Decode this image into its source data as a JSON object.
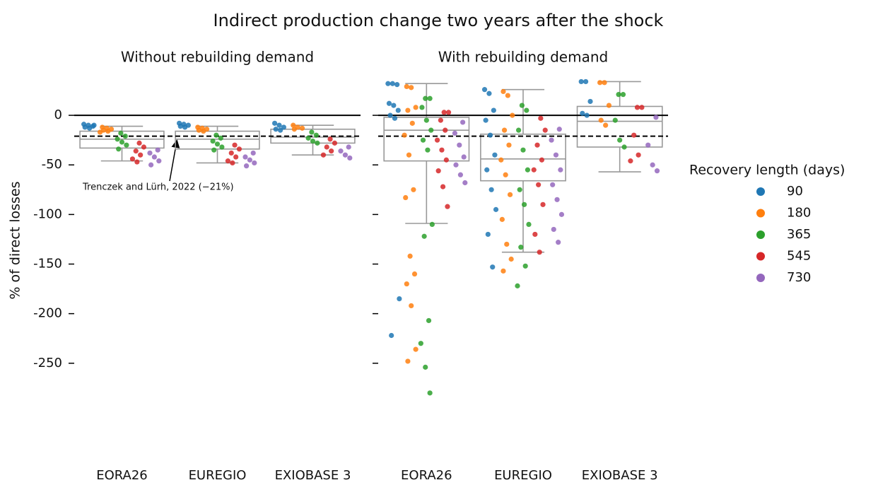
{
  "figure": {
    "title": "Indirect production change two years after the shock",
    "y_label": "% of direct losses",
    "legend_title": "Recovery length (days)",
    "legend": [
      {
        "name": "90",
        "color": "#1f77b4"
      },
      {
        "name": "180",
        "color": "#ff7f0e"
      },
      {
        "name": "365",
        "color": "#2ca02c"
      },
      {
        "name": "545",
        "color": "#d62728"
      },
      {
        "name": "730",
        "color": "#9467bd"
      }
    ],
    "reference": {
      "value": -21,
      "label": "Trenczek and Lürh, 2022 (−21%)"
    }
  },
  "chart_data": [
    {
      "type": "box_strip",
      "title": "Without rebuilding demand",
      "categories": [
        "EORA26",
        "EUREGIO",
        "EXIOBASE 3"
      ],
      "ylim": [
        -340,
        45
      ],
      "yticks": [
        0,
        -50,
        -100,
        -150,
        -200,
        -250
      ],
      "boxes": [
        {
          "whislo": -46,
          "q1": -33,
          "median": -24,
          "q3": -16,
          "whishi": -11
        },
        {
          "whislo": -48,
          "q1": -34,
          "median": -24,
          "q3": -16,
          "whishi": -11
        },
        {
          "whislo": -40,
          "q1": -28,
          "median": -22,
          "q3": -14,
          "whishi": -10
        }
      ],
      "series": [
        {
          "values": [
            [
              -9,
              -10,
              -11,
              -12,
              -13,
              -10
            ],
            [
              -8,
              -9,
              -10,
              -11,
              -12
            ],
            [
              -8,
              -10,
              -12,
              -14,
              -15
            ]
          ]
        },
        {
          "values": [
            [
              -12,
              -13,
              -14,
              -15,
              -16,
              -17
            ],
            [
              -12,
              -13,
              -14,
              -15,
              -16
            ],
            [
              -10,
              -12,
              -13,
              -14
            ]
          ]
        },
        {
          "values": [
            [
              -18,
              -21,
              -24,
              -27,
              -30,
              -34
            ],
            [
              -20,
              -23,
              -26,
              -29,
              -32,
              -35
            ],
            [
              -17,
              -20,
              -23,
              -26,
              -28
            ]
          ]
        },
        {
          "values": [
            [
              -28,
              -32,
              -36,
              -40,
              -44,
              -47
            ],
            [
              -30,
              -34,
              -38,
              -42,
              -46,
              -48
            ],
            [
              -24,
              -28,
              -32,
              -36,
              -40
            ]
          ]
        },
        {
          "values": [
            [
              -35,
              -38,
              -42,
              -46,
              -50
            ],
            [
              -38,
              -42,
              -45,
              -48,
              -51
            ],
            [
              -32,
              -36,
              -40,
              -43
            ]
          ]
        }
      ]
    },
    {
      "type": "box_strip",
      "title": "With rebuilding demand",
      "categories": [
        "EORA26",
        "EUREGIO",
        "EXIOBASE 3"
      ],
      "ylim": [
        -340,
        45
      ],
      "yticks": [
        0,
        -50,
        -100,
        -150,
        -200,
        -250
      ],
      "boxes": [
        {
          "whislo": -109,
          "q1": -46,
          "median": -15,
          "q3": -2,
          "whishi": 32
        },
        {
          "whislo": -138,
          "q1": -66,
          "median": -44,
          "q3": -19,
          "whishi": 26
        },
        {
          "whislo": -57,
          "q1": -32,
          "median": -6,
          "q3": 9,
          "whishi": 34
        }
      ],
      "series": [
        {
          "values": [
            [
              32,
              32,
              31,
              12,
              10,
              5,
              0,
              -3,
              -185,
              -222
            ],
            [
              26,
              22,
              5,
              -5,
              -20,
              -40,
              -55,
              -75,
              -95,
              -120,
              -153
            ],
            [
              34,
              34,
              14,
              2,
              0
            ]
          ]
        },
        {
          "values": [
            [
              29,
              28,
              8,
              5,
              -8,
              -20,
              -40,
              -75,
              -83,
              -142,
              -160,
              -170,
              -192,
              -236,
              -248
            ],
            [
              24,
              20,
              0,
              -15,
              -30,
              -45,
              -60,
              -80,
              -105,
              -130,
              -145,
              -157
            ],
            [
              33,
              33,
              10,
              -5,
              -10
            ]
          ]
        },
        {
          "values": [
            [
              17,
              17,
              8,
              -5,
              -15,
              -25,
              -35,
              -110,
              -122,
              -207,
              -230,
              -254,
              -280
            ],
            [
              10,
              5,
              -15,
              -35,
              -55,
              -75,
              -90,
              -110,
              -133,
              -152,
              -172
            ],
            [
              21,
              21,
              -5,
              -25,
              -32
            ]
          ]
        },
        {
          "values": [
            [
              3,
              3,
              -5,
              -15,
              -25,
              -35,
              -45,
              -56,
              -72,
              -92
            ],
            [
              -3,
              -15,
              -30,
              -45,
              -55,
              -70,
              -90,
              -120,
              -138
            ],
            [
              8,
              8,
              -20,
              -40,
              -46
            ]
          ]
        },
        {
          "values": [
            [
              -7,
              -18,
              -30,
              -42,
              -50,
              -60,
              -68
            ],
            [
              -14,
              -25,
              -40,
              -55,
              -70,
              -85,
              -100,
              -115,
              -128
            ],
            [
              -2,
              -30,
              -50,
              -56
            ]
          ]
        }
      ]
    }
  ]
}
